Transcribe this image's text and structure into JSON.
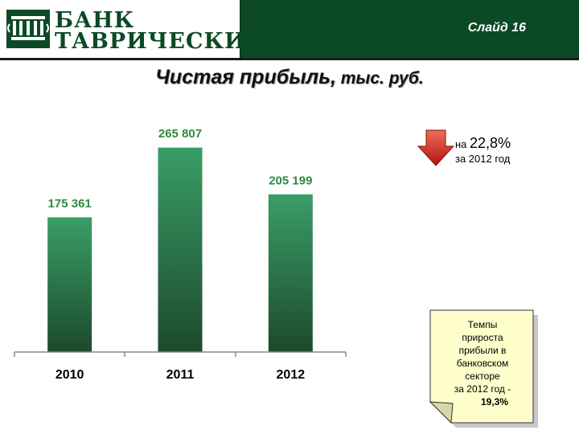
{
  "header": {
    "logo_line1": "БАНК",
    "logo_line2": "ТАВРИЧЕСКИЙ",
    "slide_label": "Слайд 16",
    "background_color": "#0b4a25"
  },
  "title": {
    "main": "Чистая прибыль,",
    "unit": " тыс. руб."
  },
  "chart_data": {
    "type": "bar",
    "categories": [
      "2010",
      "2011",
      "2012"
    ],
    "values": [
      175361,
      265807,
      205199
    ],
    "data_labels": [
      "175 361",
      "265 807",
      "205 199"
    ],
    "title": "",
    "xlabel": "",
    "ylabel": "",
    "ylim": [
      0,
      290000
    ],
    "grid": false,
    "legend": false,
    "bar_color_top": "#3a9e67",
    "bar_color_bottom": "#1c4a2c",
    "label_color": "#2e8b3e"
  },
  "growth_callout": {
    "prefix": "на ",
    "value": "22,8%",
    "period": "за 2012 год",
    "arrow_icon": "down-arrow-icon",
    "arrow_color": "#d42a1e"
  },
  "sector_note": {
    "lines": [
      "Темпы",
      "прироста",
      "прибыли в",
      "банковском",
      "секторе",
      "за 2012 год -"
    ],
    "value": "19,3%",
    "background_color": "#ffffcc"
  }
}
